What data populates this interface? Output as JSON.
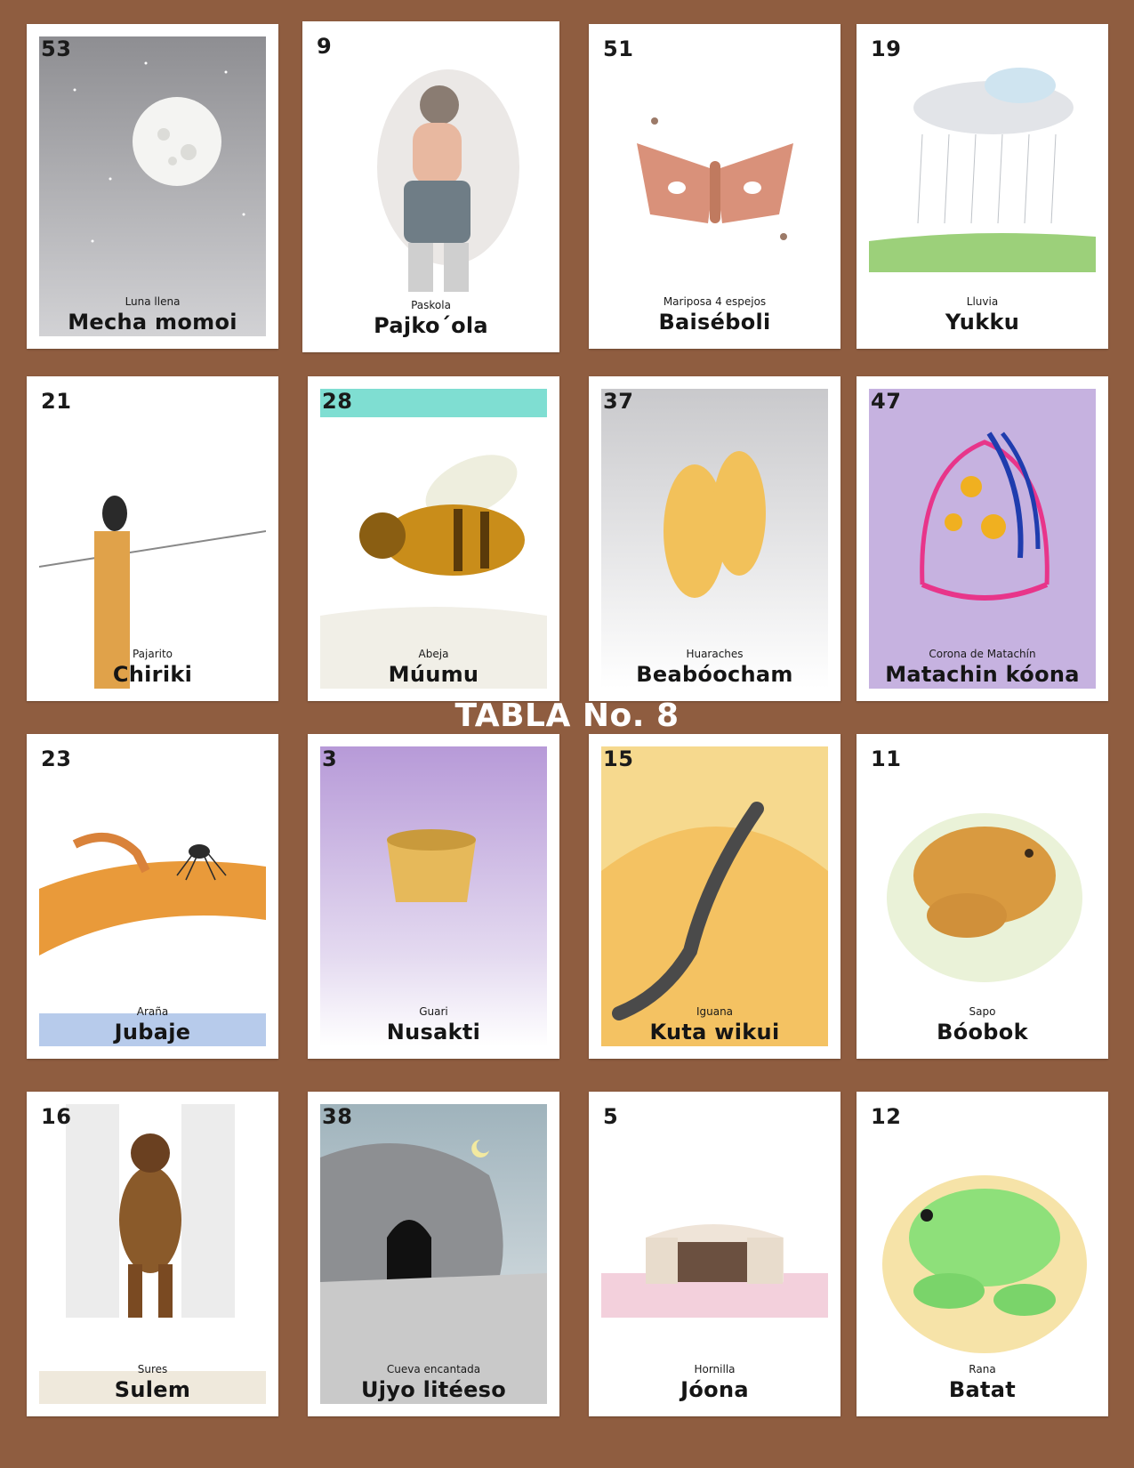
{
  "board": {
    "title": "TABLA No. 8",
    "colors": {
      "background": "#8f5d40",
      "card": "#ffffff",
      "text": "#151515"
    },
    "cards": [
      {
        "number": "53",
        "spanish": "Luna llena",
        "name": "Mecha momoi",
        "icon": "full-moon-icon",
        "bg": "#a9a9ad"
      },
      {
        "number": "9",
        "spanish": "Paskola",
        "name": "Pajko´ola",
        "icon": "pascola-dancer-icon",
        "bg": "#ffffff"
      },
      {
        "number": "51",
        "spanish": "Mariposa 4 espejos",
        "name": "Baiséboli",
        "icon": "moth-icon",
        "bg": "#ffffff"
      },
      {
        "number": "19",
        "spanish": "Lluvia",
        "name": "Yukku",
        "icon": "rain-cloud-icon",
        "bg": "#ffffff"
      },
      {
        "number": "21",
        "spanish": "Pajarito",
        "name": "Chiriki",
        "icon": "bird-on-post-icon",
        "bg": "#ffffff"
      },
      {
        "number": "28",
        "spanish": "Abeja",
        "name": "Múumu",
        "icon": "bee-icon",
        "bg": "#ffffff"
      },
      {
        "number": "37",
        "spanish": "Huaraches",
        "name": "Beabóocham",
        "icon": "sandals-icon",
        "bg": "#e8e8ea"
      },
      {
        "number": "47",
        "spanish": "Corona de Matachín",
        "name": "Matachin kóona",
        "icon": "crown-icon",
        "bg": "#c6b2e0"
      },
      {
        "number": "23",
        "spanish": "Araña",
        "name": "Jubaje",
        "icon": "spider-icon",
        "bg": "#ffffff"
      },
      {
        "number": "3",
        "spanish": "Guari",
        "name": "Nusakti",
        "icon": "basket-icon",
        "bg": "#d6c8ea"
      },
      {
        "number": "15",
        "spanish": "Iguana",
        "name": "Kuta wikui",
        "icon": "iguana-icon",
        "bg": "#f6d98e"
      },
      {
        "number": "11",
        "spanish": "Sapo",
        "name": "Bóobok",
        "icon": "toad-icon",
        "bg": "#ffffff"
      },
      {
        "number": "16",
        "spanish": "Sures",
        "name": "Sulem",
        "icon": "hairy-man-icon",
        "bg": "#ffffff"
      },
      {
        "number": "38",
        "spanish": "Cueva encantada",
        "name": "Ujyo litéeso",
        "icon": "cave-icon",
        "bg": "#c4cfd3"
      },
      {
        "number": "5",
        "spanish": "Hornilla",
        "name": "Jóona",
        "icon": "oven-icon",
        "bg": "#ffffff"
      },
      {
        "number": "12",
        "spanish": "Rana",
        "name": "Batat",
        "icon": "frog-icon",
        "bg": "#ffffff"
      }
    ]
  }
}
